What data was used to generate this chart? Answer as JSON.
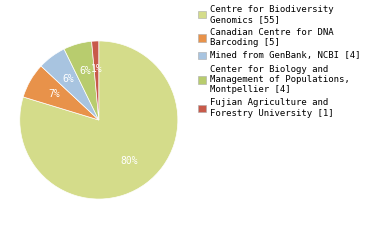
{
  "labels": [
    "Centre for Biodiversity\nGenomics [55]",
    "Canadian Centre for DNA\nBarcoding [5]",
    "Mined from GenBank, NCBI [4]",
    "Center for Biology and\nManagement of Populations,\nMontpellier [4]",
    "Fujian Agriculture and\nForestry University [1]"
  ],
  "values": [
    55,
    5,
    4,
    4,
    1
  ],
  "colors": [
    "#d4dc8a",
    "#e8924a",
    "#a8c4e0",
    "#b8cc6e",
    "#c85a4a"
  ],
  "background_color": "#ffffff",
  "text_color": "#ffffff",
  "fontsize": 7.0,
  "legend_fontsize": 6.5
}
